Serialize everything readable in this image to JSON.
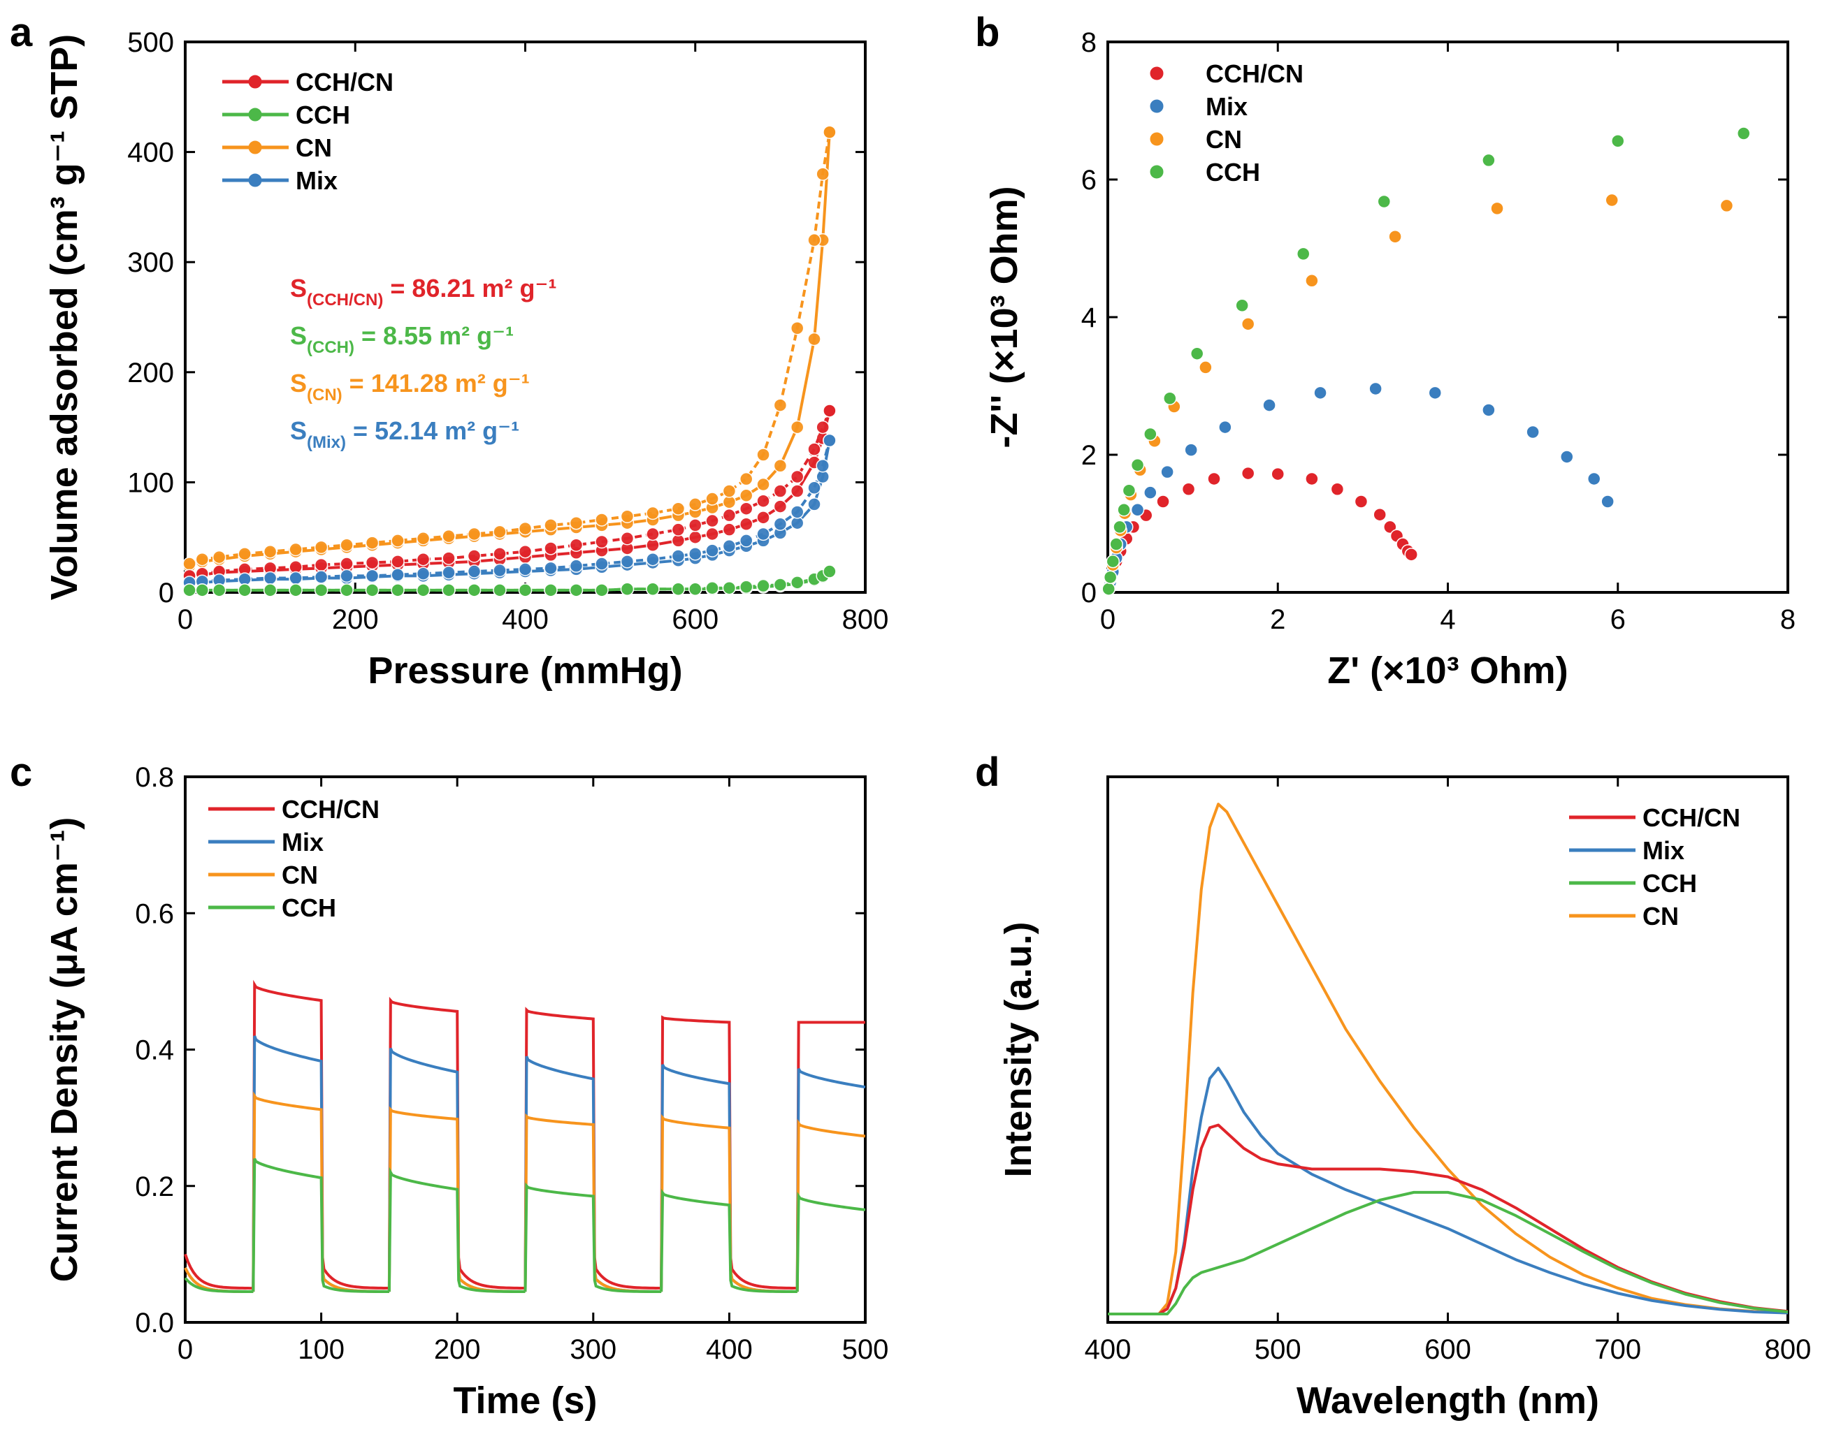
{
  "figure": {
    "panels": [
      "a",
      "b",
      "c",
      "d"
    ]
  },
  "colors": {
    "CCH/CN": "#e0242a",
    "CCH": "#4cb848",
    "CN": "#f7941d",
    "Mix": "#3a7ebf"
  },
  "chart_data": [
    {
      "id": "a",
      "type": "line",
      "xlabel": "Pressure (mmHg)",
      "ylabel": "Volume adsorbed (cm³ g⁻¹ STP)",
      "xlim": [
        0,
        800
      ],
      "ylim": [
        0,
        500
      ],
      "xticks": [
        0,
        200,
        400,
        600,
        800
      ],
      "yticks": [
        0,
        100,
        200,
        300,
        400,
        500
      ],
      "legend": [
        "CCH/CN",
        "CCH",
        "CN",
        "Mix"
      ],
      "legend_position": "top-left",
      "annotations": [
        {
          "series": "CCH/CN",
          "prefix": "S",
          "sub": "(CCH/CN)",
          "text": " = 86.21 m² g⁻¹"
        },
        {
          "series": "CCH",
          "prefix": "S",
          "sub": "(CCH)",
          "text": " = 8.55 m² g⁻¹"
        },
        {
          "series": "CN",
          "prefix": "S",
          "sub": "(CN)",
          "text": " = 141.28 m² g⁻¹"
        },
        {
          "series": "Mix",
          "prefix": "S",
          "sub": "(Mix)",
          "text": " = 52.14 m² g⁻¹"
        }
      ],
      "x": [
        5,
        20,
        40,
        70,
        100,
        130,
        160,
        190,
        220,
        250,
        280,
        310,
        340,
        370,
        400,
        430,
        460,
        490,
        520,
        550,
        580,
        600,
        620,
        640,
        660,
        680,
        700,
        720,
        740,
        750,
        758
      ],
      "series": [
        {
          "name": "CN",
          "adsorption": [
            24,
            28,
            30,
            33,
            35,
            37,
            39,
            41,
            43,
            45,
            47,
            49,
            51,
            53,
            55,
            57,
            59,
            61,
            63,
            66,
            70,
            73,
            77,
            82,
            88,
            98,
            115,
            150,
            230,
            320,
            418
          ],
          "desorption": [
            26,
            30,
            32,
            35,
            37,
            39,
            41,
            43,
            45,
            47,
            49,
            51,
            53,
            55,
            58,
            61,
            63,
            66,
            69,
            72,
            76,
            80,
            85,
            92,
            103,
            125,
            170,
            240,
            320,
            380,
            418
          ]
        },
        {
          "name": "CCH/CN",
          "adsorption": [
            14,
            16,
            18,
            19,
            20,
            21,
            22,
            23,
            24,
            25,
            26,
            27,
            28,
            30,
            32,
            34,
            36,
            38,
            40,
            43,
            47,
            50,
            53,
            57,
            62,
            68,
            78,
            92,
            118,
            140,
            165
          ],
          "desorption": [
            15,
            17,
            19,
            21,
            22,
            23,
            25,
            26,
            27,
            28,
            30,
            31,
            33,
            35,
            37,
            40,
            43,
            46,
            49,
            53,
            57,
            61,
            65,
            70,
            76,
            83,
            92,
            105,
            130,
            150,
            165
          ]
        },
        {
          "name": "Mix",
          "adsorption": [
            8,
            9,
            10,
            11,
            12,
            12,
            13,
            13,
            14,
            15,
            15,
            16,
            17,
            18,
            19,
            20,
            21,
            23,
            25,
            27,
            29,
            31,
            34,
            38,
            42,
            47,
            54,
            63,
            80,
            105,
            138
          ],
          "desorption": [
            9,
            10,
            11,
            12,
            13,
            13,
            14,
            15,
            15,
            16,
            17,
            18,
            19,
            20,
            21,
            22,
            24,
            26,
            28,
            30,
            33,
            35,
            38,
            42,
            47,
            53,
            62,
            73,
            95,
            115,
            138
          ]
        },
        {
          "name": "CCH",
          "adsorption": [
            2,
            2,
            2,
            2,
            2,
            2,
            2,
            2,
            2,
            2,
            2,
            2,
            2,
            2,
            2,
            2,
            2,
            2,
            3,
            3,
            3,
            3,
            3,
            4,
            4,
            5,
            6,
            8,
            11,
            14,
            19
          ],
          "desorption": [
            2,
            2,
            2,
            2,
            2,
            2,
            2,
            2,
            2,
            2,
            2,
            2,
            2,
            2,
            2,
            2,
            2,
            2,
            3,
            3,
            3,
            3,
            4,
            4,
            5,
            6,
            7,
            9,
            12,
            15,
            19
          ]
        }
      ]
    },
    {
      "id": "b",
      "type": "scatter",
      "xlabel": "Z' (×10³ Ohm)",
      "ylabel": "-Z'' (×10³ Ohm)",
      "xlim": [
        0,
        8
      ],
      "ylim": [
        0,
        8
      ],
      "xticks": [
        0,
        2,
        4,
        6,
        8
      ],
      "yticks": [
        0,
        2,
        4,
        6,
        8
      ],
      "legend": [
        "CCH/CN",
        "Mix",
        "CN",
        "CCH"
      ],
      "legend_position": "top-left",
      "series": [
        {
          "name": "CCH/CN",
          "points": [
            [
              0.01,
              0.05
            ],
            [
              0.03,
              0.15
            ],
            [
              0.06,
              0.3
            ],
            [
              0.1,
              0.45
            ],
            [
              0.15,
              0.6
            ],
            [
              0.22,
              0.78
            ],
            [
              0.3,
              0.95
            ],
            [
              0.45,
              1.12
            ],
            [
              0.65,
              1.32
            ],
            [
              0.95,
              1.5
            ],
            [
              1.25,
              1.65
            ],
            [
              1.65,
              1.73
            ],
            [
              2.0,
              1.72
            ],
            [
              2.4,
              1.65
            ],
            [
              2.7,
              1.5
            ],
            [
              2.98,
              1.32
            ],
            [
              3.2,
              1.13
            ],
            [
              3.32,
              0.95
            ],
            [
              3.4,
              0.82
            ],
            [
              3.47,
              0.7
            ],
            [
              3.53,
              0.6
            ],
            [
              3.57,
              0.55
            ]
          ]
        },
        {
          "name": "Mix",
          "points": [
            [
              0.01,
              0.05
            ],
            [
              0.03,
              0.15
            ],
            [
              0.06,
              0.3
            ],
            [
              0.1,
              0.5
            ],
            [
              0.15,
              0.7
            ],
            [
              0.22,
              0.95
            ],
            [
              0.35,
              1.2
            ],
            [
              0.5,
              1.45
            ],
            [
              0.7,
              1.75
            ],
            [
              0.98,
              2.07
            ],
            [
              1.38,
              2.4
            ],
            [
              1.9,
              2.72
            ],
            [
              2.5,
              2.9
            ],
            [
              3.15,
              2.96
            ],
            [
              3.85,
              2.9
            ],
            [
              4.48,
              2.65
            ],
            [
              5.0,
              2.33
            ],
            [
              5.4,
              1.97
            ],
            [
              5.72,
              1.65
            ],
            [
              5.88,
              1.32
            ]
          ]
        },
        {
          "name": "CN",
          "points": [
            [
              0.01,
              0.05
            ],
            [
              0.03,
              0.2
            ],
            [
              0.06,
              0.4
            ],
            [
              0.1,
              0.65
            ],
            [
              0.15,
              0.9
            ],
            [
              0.2,
              1.15
            ],
            [
              0.27,
              1.42
            ],
            [
              0.38,
              1.78
            ],
            [
              0.55,
              2.2
            ],
            [
              0.78,
              2.7
            ],
            [
              1.15,
              3.27
            ],
            [
              1.65,
              3.9
            ],
            [
              2.4,
              4.53
            ],
            [
              3.38,
              5.17
            ],
            [
              4.58,
              5.58
            ],
            [
              5.93,
              5.7
            ],
            [
              7.28,
              5.62
            ]
          ]
        },
        {
          "name": "CCH",
          "points": [
            [
              0.01,
              0.05
            ],
            [
              0.03,
              0.22
            ],
            [
              0.06,
              0.45
            ],
            [
              0.1,
              0.7
            ],
            [
              0.14,
              0.95
            ],
            [
              0.19,
              1.2
            ],
            [
              0.25,
              1.48
            ],
            [
              0.35,
              1.85
            ],
            [
              0.5,
              2.3
            ],
            [
              0.73,
              2.82
            ],
            [
              1.05,
              3.47
            ],
            [
              1.58,
              4.17
            ],
            [
              2.3,
              4.92
            ],
            [
              3.25,
              5.68
            ],
            [
              4.48,
              6.28
            ],
            [
              6.0,
              6.56
            ],
            [
              7.48,
              6.67
            ]
          ]
        }
      ]
    },
    {
      "id": "c",
      "type": "line",
      "xlabel": "Time (s)",
      "ylabel": "Current Density (μA cm⁻¹)",
      "xlim": [
        0,
        500
      ],
      "ylim": [
        0.0,
        0.8
      ],
      "xticks": [
        0,
        100,
        200,
        300,
        400,
        500
      ],
      "yticks": [
        0.0,
        0.2,
        0.4,
        0.6,
        0.8
      ],
      "legend": [
        "CCH/CN",
        "Mix",
        "CN",
        "CCH"
      ],
      "legend_position": "top-left",
      "light_on_periods": [
        [
          50,
          100
        ],
        [
          150,
          200
        ],
        [
          250,
          300
        ],
        [
          350,
          400
        ],
        [
          450,
          500
        ]
      ],
      "series": [
        {
          "name": "CCH/CN",
          "dark_start": 0.1,
          "dark_end": 0.05,
          "on_peaks": [
            0.495,
            0.472,
            0.458,
            0.447,
            0.44
          ],
          "on_ends": [
            0.472,
            0.456,
            0.445,
            0.44,
            0.44
          ]
        },
        {
          "name": "Mix",
          "dark_start": 0.08,
          "dark_end": 0.045,
          "on_peaks": [
            0.42,
            0.402,
            0.39,
            0.378,
            0.372
          ],
          "on_ends": [
            0.383,
            0.367,
            0.357,
            0.35,
            0.345
          ]
        },
        {
          "name": "CN",
          "dark_start": 0.08,
          "dark_end": 0.045,
          "on_peaks": [
            0.332,
            0.312,
            0.302,
            0.3,
            0.292
          ],
          "on_ends": [
            0.312,
            0.298,
            0.29,
            0.285,
            0.273
          ]
        },
        {
          "name": "CCH",
          "dark_start": 0.065,
          "dark_end": 0.045,
          "on_peaks": [
            0.24,
            0.22,
            0.2,
            0.19,
            0.185
          ],
          "on_ends": [
            0.212,
            0.195,
            0.185,
            0.172,
            0.165
          ]
        }
      ]
    },
    {
      "id": "d",
      "type": "line",
      "xlabel": "Wavelength (nm)",
      "ylabel": "Intensity (a.u.)",
      "xlim": [
        400,
        800
      ],
      "ylim": [
        0,
        1.0
      ],
      "xticks": [
        400,
        500,
        600,
        700,
        800
      ],
      "yticks": [],
      "legend": [
        "CCH/CN",
        "Mix",
        "CCH",
        "CN"
      ],
      "legend_position": "top-right",
      "x": [
        400,
        430,
        435,
        440,
        445,
        450,
        455,
        460,
        465,
        470,
        480,
        490,
        500,
        520,
        540,
        560,
        580,
        600,
        620,
        640,
        660,
        680,
        700,
        720,
        740,
        760,
        780,
        800
      ],
      "series": [
        {
          "name": "CN",
          "values": [
            0.0,
            0.0,
            0.02,
            0.12,
            0.35,
            0.62,
            0.82,
            0.94,
            0.985,
            0.97,
            0.91,
            0.85,
            0.79,
            0.67,
            0.55,
            0.45,
            0.36,
            0.28,
            0.21,
            0.155,
            0.11,
            0.075,
            0.05,
            0.03,
            0.018,
            0.01,
            0.005,
            0.002
          ]
        },
        {
          "name": "Mix",
          "values": [
            0.0,
            0.0,
            0.01,
            0.05,
            0.14,
            0.28,
            0.38,
            0.455,
            0.475,
            0.45,
            0.39,
            0.345,
            0.31,
            0.27,
            0.24,
            0.215,
            0.19,
            0.165,
            0.135,
            0.105,
            0.08,
            0.058,
            0.04,
            0.026,
            0.016,
            0.009,
            0.004,
            0.002
          ]
        },
        {
          "name": "CCH/CN",
          "values": [
            0.0,
            0.0,
            0.01,
            0.05,
            0.13,
            0.24,
            0.32,
            0.36,
            0.365,
            0.35,
            0.32,
            0.3,
            0.29,
            0.28,
            0.28,
            0.28,
            0.275,
            0.265,
            0.24,
            0.205,
            0.165,
            0.125,
            0.09,
            0.062,
            0.04,
            0.024,
            0.012,
            0.005
          ]
        },
        {
          "name": "CCH",
          "values": [
            0.0,
            0.0,
            0.0,
            0.02,
            0.05,
            0.07,
            0.08,
            0.085,
            0.09,
            0.095,
            0.105,
            0.12,
            0.135,
            0.165,
            0.195,
            0.22,
            0.235,
            0.235,
            0.22,
            0.19,
            0.155,
            0.12,
            0.087,
            0.06,
            0.038,
            0.022,
            0.011,
            0.004
          ]
        }
      ]
    }
  ]
}
